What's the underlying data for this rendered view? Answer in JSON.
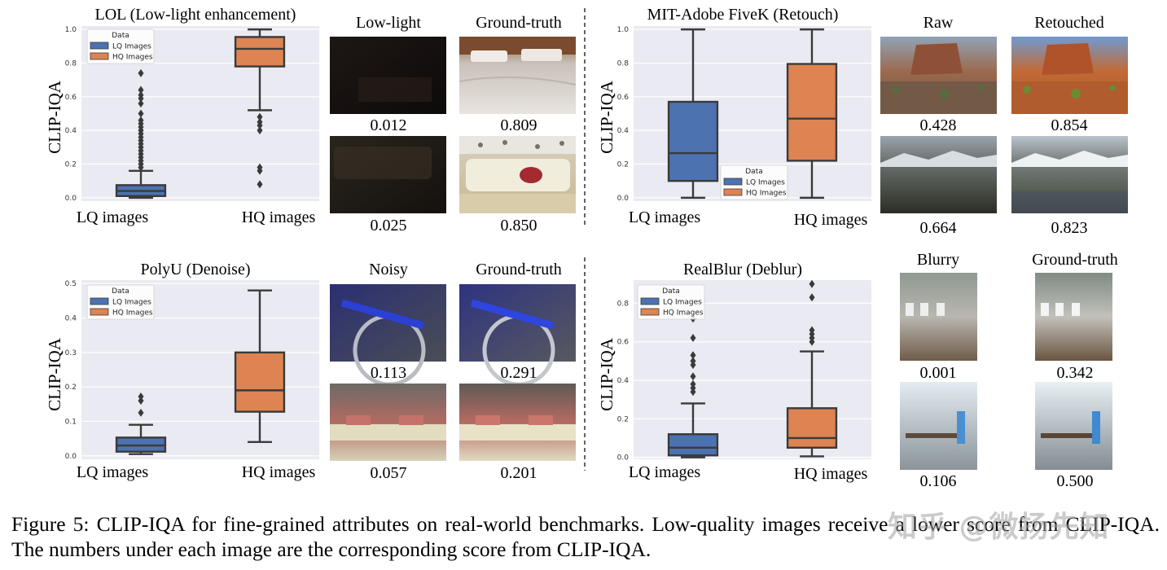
{
  "caption": "Figure 5: CLIP-IQA for fine-grained attributes on real-world benchmarks. Low-quality images receive a lower score from CLIP-IQA. The numbers under each image are the corresponding score from CLIP-IQA.",
  "watermark": "知乎 @微扬先知",
  "colors": {
    "lq": "#4c72b0",
    "hq": "#dd8452",
    "bg": "#eaeaf2",
    "grid": "#ffffff",
    "line": "#3a3a3a"
  },
  "chart_data": [
    {
      "type": "box",
      "title": "LOL (Low-light enhancement)",
      "ylabel": "CLIP-IQA",
      "categories": [
        "LQ images",
        "HQ images"
      ],
      "legend_title": "Data",
      "legend": [
        "LQ Images",
        "HQ Images"
      ],
      "legend_loc": "upper-left",
      "ylim": [
        -0.02,
        1.02
      ],
      "yticks": [
        "0.0",
        "0.2",
        "0.4",
        "0.6",
        "0.8",
        "1.0"
      ],
      "boxes": [
        {
          "name": "LQ images",
          "min": 0.0,
          "q1": 0.01,
          "median": 0.04,
          "q3": 0.075,
          "max": 0.16,
          "outliers": [
            0.18,
            0.2,
            0.22,
            0.24,
            0.26,
            0.28,
            0.3,
            0.32,
            0.34,
            0.36,
            0.38,
            0.4,
            0.42,
            0.44,
            0.46,
            0.5,
            0.56,
            0.59,
            0.61,
            0.64,
            0.74
          ]
        },
        {
          "name": "HQ images",
          "min": 0.52,
          "q1": 0.78,
          "median": 0.885,
          "q3": 0.955,
          "max": 1.0,
          "outliers": [
            0.08,
            0.16,
            0.18,
            0.4,
            0.43,
            0.45,
            0.48
          ]
        }
      ]
    },
    {
      "type": "box",
      "title": "MIT-Adobe FiveK (Retouch)",
      "ylabel": "CLIP-IQA",
      "categories": [
        "LQ images",
        "HQ images"
      ],
      "legend_title": "Data",
      "legend": [
        "LQ Images",
        "HQ Images"
      ],
      "legend_loc": "lower-center",
      "ylim": [
        -0.02,
        1.02
      ],
      "yticks": [
        "0.0",
        "0.2",
        "0.4",
        "0.6",
        "0.8",
        "1.0"
      ],
      "boxes": [
        {
          "name": "LQ images",
          "min": 0.0,
          "q1": 0.1,
          "median": 0.265,
          "q3": 0.57,
          "max": 1.0,
          "outliers": []
        },
        {
          "name": "HQ images",
          "min": 0.0,
          "q1": 0.22,
          "median": 0.47,
          "q3": 0.795,
          "max": 1.0,
          "outliers": []
        }
      ]
    },
    {
      "type": "box",
      "title": "PolyU (Denoise)",
      "ylabel": "CLIP-IQA",
      "categories": [
        "LQ images",
        "HQ images"
      ],
      "legend_title": "Data",
      "legend": [
        "LQ Images",
        "HQ Images"
      ],
      "legend_loc": "upper-left",
      "ylim": [
        -0.01,
        0.51
      ],
      "yticks": [
        "0.0",
        "0.1",
        "0.2",
        "0.3",
        "0.4",
        "0.5"
      ],
      "boxes": [
        {
          "name": "LQ images",
          "min": 0.005,
          "q1": 0.012,
          "median": 0.03,
          "q3": 0.053,
          "max": 0.09,
          "outliers": [
            0.125,
            0.16,
            0.172
          ]
        },
        {
          "name": "HQ images",
          "min": 0.04,
          "q1": 0.128,
          "median": 0.19,
          "q3": 0.3,
          "max": 0.48,
          "outliers": []
        }
      ]
    },
    {
      "type": "box",
      "title": "RealBlur (Deblur)",
      "ylabel": "CLIP-IQA",
      "categories": [
        "LQ images",
        "HQ images"
      ],
      "legend_title": "Data",
      "legend": [
        "LQ Images",
        "HQ Images"
      ],
      "legend_loc": "upper-left",
      "ylim": [
        -0.01,
        0.92
      ],
      "yticks": [
        "0.0",
        "0.2",
        "0.4",
        "0.6",
        "0.8"
      ],
      "boxes": [
        {
          "name": "LQ images",
          "min": 0.0,
          "q1": 0.01,
          "median": 0.05,
          "q3": 0.12,
          "max": 0.28,
          "outliers": [
            0.34,
            0.36,
            0.38,
            0.42,
            0.48,
            0.5,
            0.53,
            0.62,
            0.72
          ]
        },
        {
          "name": "HQ images",
          "min": 0.005,
          "q1": 0.05,
          "median": 0.1,
          "q3": 0.255,
          "max": 0.55,
          "outliers": [
            0.6,
            0.62,
            0.64,
            0.66,
            0.83,
            0.9
          ]
        }
      ]
    }
  ],
  "image_grids": [
    {
      "headers": [
        "Low-light",
        "Ground-truth"
      ],
      "rows": [
        {
          "scores": [
            "0.012",
            "0.809"
          ],
          "themes": [
            "lowlight1",
            "bed"
          ]
        },
        {
          "scores": [
            "0.025",
            "0.850"
          ],
          "themes": [
            "lowlight2",
            "sofa"
          ]
        }
      ]
    },
    {
      "headers": [
        "Raw",
        "Retouched"
      ],
      "rows": [
        {
          "scores": [
            "0.428",
            "0.854"
          ],
          "themes": [
            "mesa_raw",
            "mesa_ret"
          ]
        },
        {
          "scores": [
            "0.664",
            "0.823"
          ],
          "themes": [
            "field_raw",
            "field_ret"
          ]
        }
      ]
    },
    {
      "headers": [
        "Noisy",
        "Ground-truth"
      ],
      "rows": [
        {
          "scores": [
            "0.113",
            "0.291"
          ],
          "themes": [
            "bike_noisy",
            "bike_gt"
          ]
        },
        {
          "scores": [
            "0.057",
            "0.201"
          ],
          "themes": [
            "class_noisy",
            "class_gt"
          ]
        }
      ]
    },
    {
      "headers": [
        "Blurry",
        "Ground-truth"
      ],
      "rows": [
        {
          "scores": [
            "0.001",
            "0.342"
          ],
          "themes": [
            "porch_blur",
            "porch_gt"
          ]
        },
        {
          "scores": [
            "0.106",
            "0.500"
          ],
          "themes": [
            "desk_blur",
            "desk_gt"
          ]
        }
      ]
    }
  ]
}
